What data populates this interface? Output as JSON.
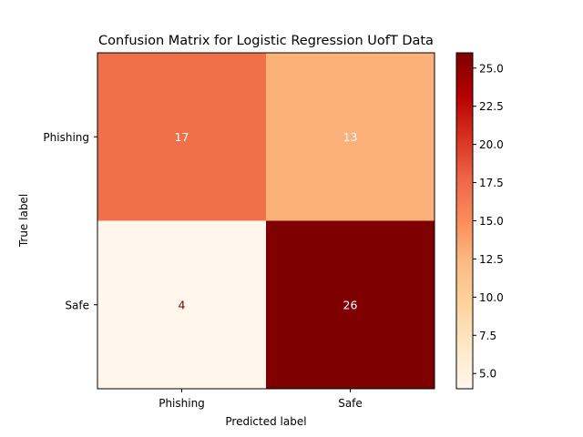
{
  "chart_data": {
    "type": "heatmap",
    "title": "Confusion Matrix for Logistic Regression UofT Data",
    "xlabel": "Predicted label",
    "ylabel": "True label",
    "x_categories": [
      "Phishing",
      "Safe"
    ],
    "y_categories": [
      "Phishing",
      "Safe"
    ],
    "values": [
      [
        17,
        13
      ],
      [
        4,
        26
      ]
    ],
    "colormap": "OrRd",
    "colorbar": {
      "min": 4,
      "max": 26,
      "ticks": [
        "5.0",
        "7.5",
        "10.0",
        "12.5",
        "15.0",
        "17.5",
        "20.0",
        "22.5",
        "25.0"
      ]
    },
    "colors": {
      "cell_17": "#f0704b",
      "cell_13": "#fcb07a",
      "cell_4": "#fff7ec",
      "cell_26": "#7f0000",
      "text_light": "#ffffff",
      "text_dark": "#7f0000"
    }
  }
}
